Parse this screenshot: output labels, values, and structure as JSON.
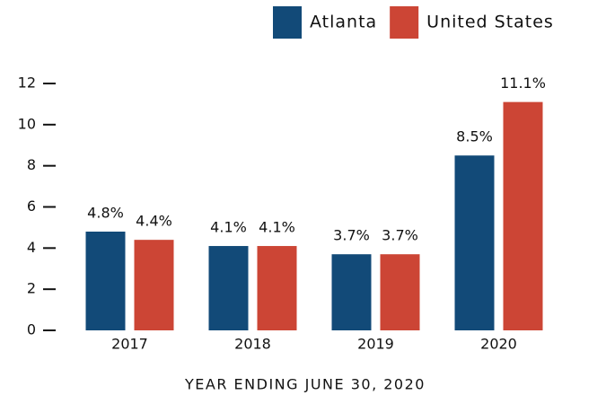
{
  "chart_data": {
    "type": "bar",
    "x_label": "YEAR ENDING JUNE 30, 2020",
    "categories": [
      "2017",
      "2018",
      "2019",
      "2020"
    ],
    "series": [
      {
        "name": "Atlanta",
        "color": "#124a78",
        "values": [
          4.8,
          4.1,
          3.7,
          8.5
        ],
        "value_labels": [
          "4.8%",
          "4.1%",
          "3.7%",
          "8.5%"
        ]
      },
      {
        "name": "United States",
        "color": "#cc4535",
        "values": [
          4.4,
          4.1,
          3.7,
          11.1
        ],
        "value_labels": [
          "4.4%",
          "4.1%",
          "3.7%",
          "11.1%"
        ]
      }
    ],
    "ylim": [
      0,
      12
    ],
    "yticks": [
      0,
      2,
      4,
      6,
      8,
      10,
      12
    ],
    "grid": false,
    "legend": "top-right"
  }
}
